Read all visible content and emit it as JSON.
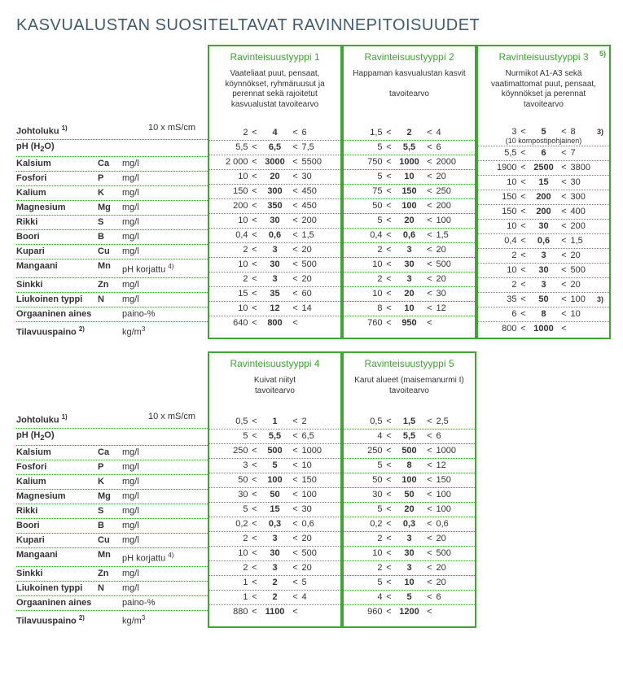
{
  "title": "KASVUALUSTAN SUOSITELTAVAT RAVINNEPITOISUUDET",
  "colors": {
    "accent": "#3fa535",
    "title": "#425a6e",
    "text": "#333333"
  },
  "labels": [
    {
      "name": "Johtoluku",
      "sup": "1)",
      "sym": "",
      "unit": "10 x mS/cm",
      "centered": true
    },
    {
      "name": "pH (H₂O)",
      "sym": "",
      "unit": ""
    },
    {
      "name": "Kalsium",
      "sym": "Ca",
      "unit": "mg/l"
    },
    {
      "name": "Fosfori",
      "sym": "P",
      "unit": "mg/l"
    },
    {
      "name": "Kalium",
      "sym": "K",
      "unit": "mg/l"
    },
    {
      "name": "Magnesium",
      "sym": "Mg",
      "unit": "mg/l"
    },
    {
      "name": "Rikki",
      "sym": "S",
      "unit": "mg/l"
    },
    {
      "name": "Boori",
      "sym": "B",
      "unit": "mg/l"
    },
    {
      "name": "Kupari",
      "sym": "Cu",
      "unit": "mg/l"
    },
    {
      "name": "Mangaani",
      "sym": "Mn",
      "unit": "pH korjattu",
      "unitSup": "4)"
    },
    {
      "name": "Sinkki",
      "sym": "Zn",
      "unit": "mg/l"
    },
    {
      "name": "Liukoinen typpi",
      "sym": "N",
      "unit": "mg/l"
    },
    {
      "name": "Orgaaninen aines",
      "sym": "",
      "unit": "paino-%"
    },
    {
      "name": "Tilavuuspaino",
      "sup": "2)",
      "sym": "",
      "unit": "kg/m³"
    }
  ],
  "types": [
    {
      "title": "Ravinteisuustyyppi 1",
      "sub": "Vaateliaat puut, pensaat, köynnökset, ryhmäruusut ja perennat sekä rajoitetut kasvualustat tavoitearvo",
      "rows": [
        [
          "2",
          "4",
          "6"
        ],
        [
          "5,5",
          "6,5",
          "7,5"
        ],
        [
          "2 000",
          "3000",
          "5500"
        ],
        [
          "10",
          "20",
          "30"
        ],
        [
          "150",
          "300",
          "450"
        ],
        [
          "200",
          "350",
          "450"
        ],
        [
          "10",
          "30",
          "200"
        ],
        [
          "0,4",
          "0,6",
          "1,5"
        ],
        [
          "2",
          "3",
          "20"
        ],
        [
          "10",
          "30",
          "500"
        ],
        [
          "2",
          "3",
          "20"
        ],
        [
          "15",
          "35",
          "60"
        ],
        [
          "10",
          "12",
          "14"
        ],
        [
          "640",
          "800",
          ""
        ]
      ]
    },
    {
      "title": "Ravinteisuustyyppi 2",
      "sub": "Happaman kasvu­alustan kasvit\n\ntavoitearvo",
      "rows": [
        [
          "1,5",
          "2",
          "4"
        ],
        [
          "5",
          "5,5",
          "6"
        ],
        [
          "750",
          "1000",
          "2000"
        ],
        [
          "5",
          "10",
          "20"
        ],
        [
          "75",
          "150",
          "250"
        ],
        [
          "50",
          "100",
          "200"
        ],
        [
          "5",
          "20",
          "100"
        ],
        [
          "0,4",
          "0,6",
          "1,5"
        ],
        [
          "2",
          "3",
          "20"
        ],
        [
          "10",
          "30",
          "500"
        ],
        [
          "2",
          "3",
          "20"
        ],
        [
          "10",
          "20",
          "30"
        ],
        [
          "8",
          "10",
          "12"
        ],
        [
          "760",
          "950",
          ""
        ]
      ]
    },
    {
      "title": "Ravinteisuustyyppi 3",
      "titleNote": "5)",
      "sub": "Nurmikot A1-A3 sekä vaatimattomat puut, pensaat, köynnökset ja perennat tavoitearvo",
      "rows": [
        [
          "3",
          "5",
          "8",
          "3)",
          "(10 kompostipohjainen)"
        ],
        [
          "5,5",
          "6",
          "7"
        ],
        [
          "1900",
          "2500",
          "3800"
        ],
        [
          "10",
          "15",
          "30"
        ],
        [
          "150",
          "200",
          "300"
        ],
        [
          "150",
          "200",
          "400"
        ],
        [
          "10",
          "30",
          "200"
        ],
        [
          "0,4",
          "0,6",
          "1,5"
        ],
        [
          "2",
          "3",
          "20"
        ],
        [
          "10",
          "30",
          "500"
        ],
        [
          "2",
          "3",
          "20"
        ],
        [
          "35",
          "50",
          "100",
          "3)"
        ],
        [
          "6",
          "8",
          "10"
        ],
        [
          "800",
          "1000",
          ""
        ]
      ]
    },
    {
      "title": "Ravinteisuustyyppi 4",
      "sub": "Kuivat niityt\ntavoitearvo",
      "rows": [
        [
          "0,5",
          "1",
          "2"
        ],
        [
          "5",
          "5,5",
          "6,5"
        ],
        [
          "250",
          "500",
          "1000"
        ],
        [
          "3",
          "5",
          "10"
        ],
        [
          "50",
          "100",
          "150"
        ],
        [
          "30",
          "50",
          "100"
        ],
        [
          "5",
          "15",
          "30"
        ],
        [
          "0,2",
          "0,3",
          "0,6"
        ],
        [
          "2",
          "3",
          "20"
        ],
        [
          "10",
          "30",
          "500"
        ],
        [
          "2",
          "3",
          "20"
        ],
        [
          "1",
          "2",
          "5"
        ],
        [
          "1",
          "2",
          "4"
        ],
        [
          "880",
          "1100",
          ""
        ]
      ]
    },
    {
      "title": "Ravinteisuustyyppi 5",
      "sub": "Karut alueet (maisemanurmi I) tavoitearvo",
      "rows": [
        [
          "0,5",
          "1,5",
          "2,5"
        ],
        [
          "4",
          "5,5",
          "6"
        ],
        [
          "250",
          "500",
          "1000"
        ],
        [
          "5",
          "8",
          "12"
        ],
        [
          "50",
          "100",
          "150"
        ],
        [
          "30",
          "50",
          "100"
        ],
        [
          "5",
          "20",
          "100"
        ],
        [
          "0,2",
          "0,3",
          "0,6"
        ],
        [
          "2",
          "3",
          "20"
        ],
        [
          "10",
          "30",
          "500"
        ],
        [
          "2",
          "3",
          "20"
        ],
        [
          "5",
          "10",
          "20"
        ],
        [
          "4",
          "5",
          "6"
        ],
        [
          "960",
          "1200",
          ""
        ]
      ]
    }
  ]
}
